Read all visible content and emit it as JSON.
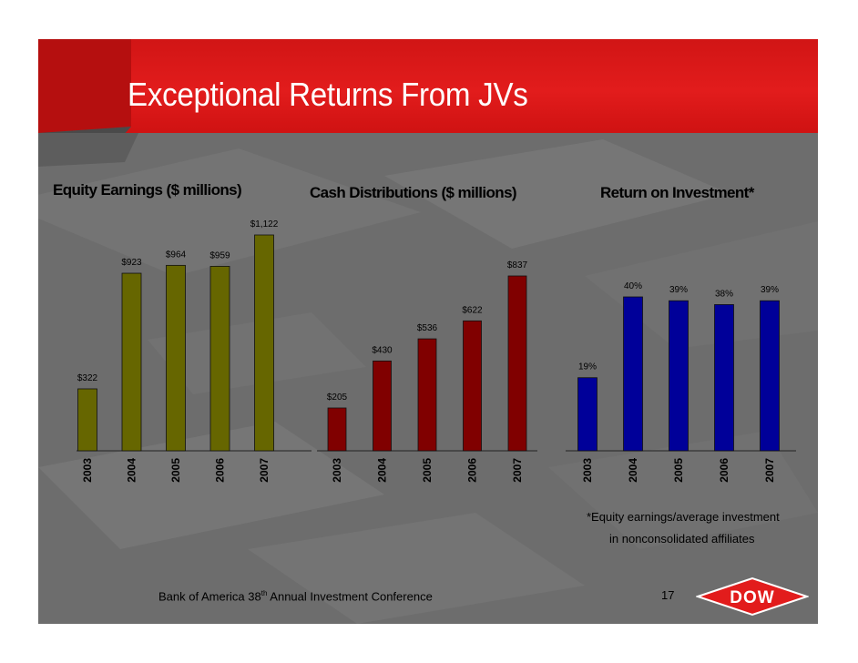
{
  "slide": {
    "title": "Exceptional Returns From JVs",
    "footnote_line1": "*Equity earnings/average investment",
    "footnote_line2": "in nonconsolidated affiliates",
    "footer_prefix": "Bank of America 38",
    "footer_sup": "th",
    "footer_suffix": " Annual Investment Conference",
    "page_number": "17",
    "logo_text": "DOW",
    "colors": {
      "title_band": "#e21c1c",
      "background": "#6f6f6f"
    }
  },
  "chart_data": [
    {
      "type": "bar",
      "title": "Equity Earnings ($ millions)",
      "categories": [
        "2003",
        "2004",
        "2005",
        "2006",
        "2007"
      ],
      "values": [
        322,
        923,
        964,
        959,
        1122
      ],
      "labels": [
        "$322",
        "$923",
        "$964",
        "$959",
        "$1,122"
      ],
      "color": "#666600",
      "grid": false
    },
    {
      "type": "bar",
      "title": "Cash Distributions ($ millions)",
      "categories": [
        "2003",
        "2004",
        "2005",
        "2006",
        "2007"
      ],
      "values": [
        205,
        430,
        536,
        622,
        837
      ],
      "labels": [
        "$205",
        "$430",
        "$536",
        "$622",
        "$837"
      ],
      "color": "#800000",
      "grid": false
    },
    {
      "type": "bar",
      "title": "Return on Investment*",
      "categories": [
        "2003",
        "2004",
        "2005",
        "2006",
        "2007"
      ],
      "values": [
        19,
        40,
        39,
        38,
        39
      ],
      "labels": [
        "19%",
        "40%",
        "39%",
        "38%",
        "39%"
      ],
      "color": "#000099",
      "grid": false
    }
  ]
}
